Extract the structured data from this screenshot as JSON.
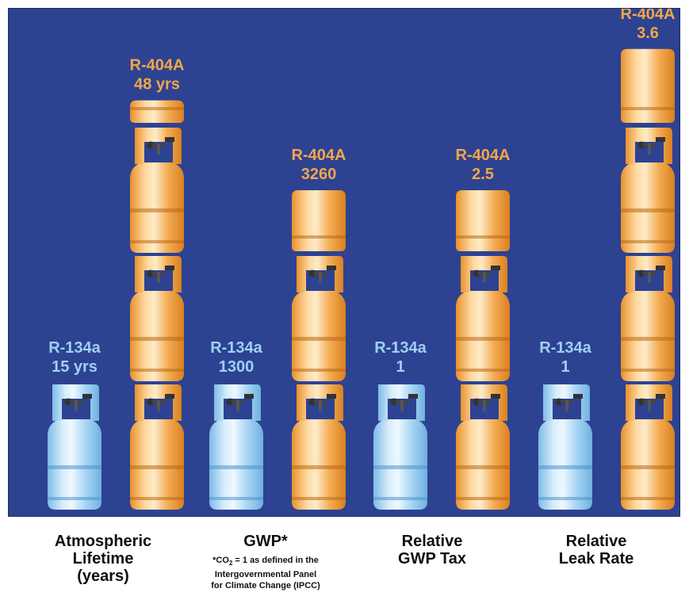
{
  "title": "",
  "chart_data": {
    "type": "bar",
    "categories": [
      [
        "Atmospheric",
        "Lifetime",
        "(years)"
      ],
      [
        "GWP*"
      ],
      [
        "Relative",
        "GWP Tax"
      ],
      [
        "Relative",
        "Leak Rate"
      ]
    ],
    "series": [
      {
        "name": "R-134a",
        "color": "#9fd0f2",
        "values": [
          15,
          1300,
          1,
          1
        ],
        "labels": [
          "15 yrs",
          "1300",
          "1",
          "1"
        ]
      },
      {
        "name": "R-404A",
        "color": "#f2a64a",
        "values": [
          48,
          3260,
          2.5,
          3.6
        ],
        "labels": [
          "48 yrs",
          "3260",
          "2.5",
          "3.6"
        ]
      }
    ],
    "units_shown": {
      "R-134a": [
        1,
        1,
        1,
        1
      ],
      "R-404A": [
        3.2,
        2.5,
        2.5,
        3.6
      ]
    },
    "footnote": {
      "prefix": "*CO",
      "sub": "2",
      "suffix": " = 1 as defined in the",
      "line2": "Intergovernmental Panel",
      "line3": "for Climate Change (IPCC)"
    },
    "background": "#2d4291"
  }
}
